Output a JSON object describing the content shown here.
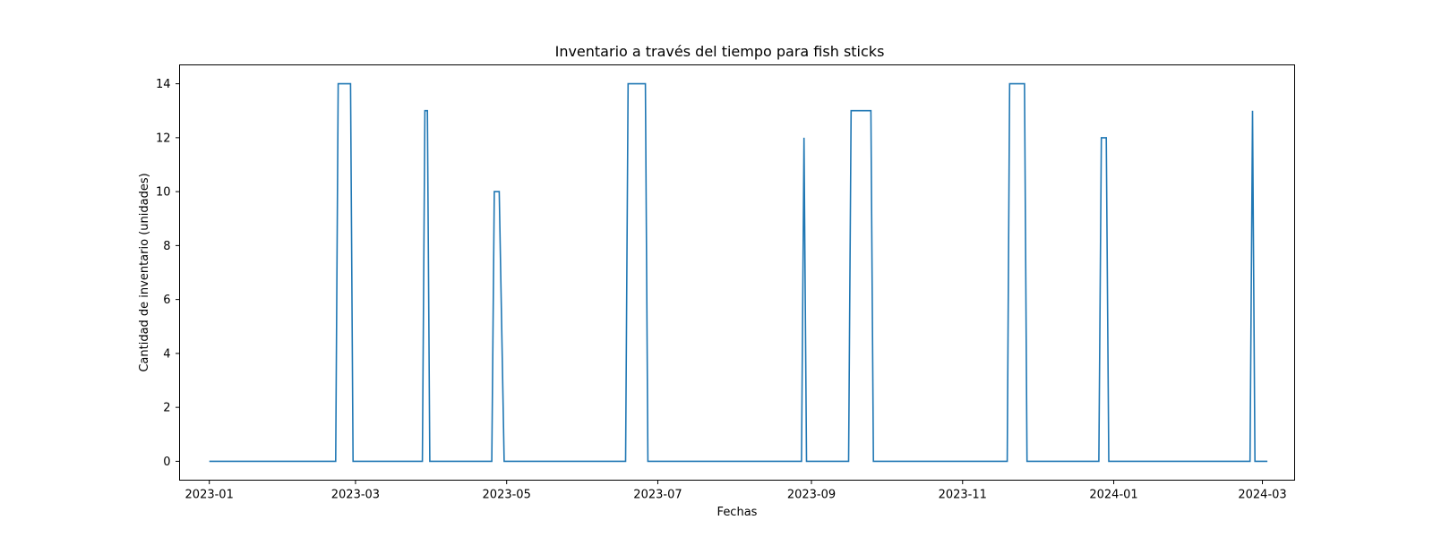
{
  "chart_data": {
    "type": "line",
    "title": "Inventario a través del tiempo para fish sticks",
    "xlabel": "Fechas",
    "ylabel": "Cantidad de inventario (unidades)",
    "x_axis_type": "date",
    "xlim": [
      "2022-12-20",
      "2024-03-14"
    ],
    "ylim": [
      -0.7,
      14.7
    ],
    "x_ticks": [
      "2023-01",
      "2023-03",
      "2023-05",
      "2023-07",
      "2023-09",
      "2023-11",
      "2024-01",
      "2024-03"
    ],
    "y_ticks": [
      0,
      2,
      4,
      6,
      8,
      10,
      12,
      14
    ],
    "grid": false,
    "legend": "none",
    "colors": {
      "series": "#1f77b4",
      "axes": "#000000",
      "background": "#ffffff"
    },
    "series": [
      {
        "points": [
          {
            "x": "2023-01-01",
            "y": 0
          },
          {
            "x": "2023-02-21",
            "y": 0
          },
          {
            "x": "2023-02-22",
            "y": 14
          },
          {
            "x": "2023-02-27",
            "y": 14
          },
          {
            "x": "2023-02-28",
            "y": 0
          },
          {
            "x": "2023-03-28",
            "y": 0
          },
          {
            "x": "2023-03-29",
            "y": 13
          },
          {
            "x": "2023-03-30",
            "y": 13
          },
          {
            "x": "2023-03-31",
            "y": 0
          },
          {
            "x": "2023-04-25",
            "y": 0
          },
          {
            "x": "2023-04-26",
            "y": 10
          },
          {
            "x": "2023-04-28",
            "y": 10
          },
          {
            "x": "2023-04-30",
            "y": 0
          },
          {
            "x": "2023-06-18",
            "y": 0
          },
          {
            "x": "2023-06-19",
            "y": 14
          },
          {
            "x": "2023-06-26",
            "y": 14
          },
          {
            "x": "2023-06-27",
            "y": 0
          },
          {
            "x": "2023-08-28",
            "y": 0
          },
          {
            "x": "2023-08-29",
            "y": 12
          },
          {
            "x": "2023-08-30",
            "y": 0
          },
          {
            "x": "2023-09-16",
            "y": 0
          },
          {
            "x": "2023-09-17",
            "y": 13
          },
          {
            "x": "2023-09-25",
            "y": 13
          },
          {
            "x": "2023-09-26",
            "y": 0
          },
          {
            "x": "2023-11-19",
            "y": 0
          },
          {
            "x": "2023-11-20",
            "y": 14
          },
          {
            "x": "2023-11-26",
            "y": 14
          },
          {
            "x": "2023-11-27",
            "y": 0
          },
          {
            "x": "2023-12-26",
            "y": 0
          },
          {
            "x": "2023-12-27",
            "y": 12
          },
          {
            "x": "2023-12-29",
            "y": 12
          },
          {
            "x": "2023-12-30",
            "y": 0
          },
          {
            "x": "2024-02-25",
            "y": 0
          },
          {
            "x": "2024-02-26",
            "y": 13
          },
          {
            "x": "2024-02-27",
            "y": 0
          },
          {
            "x": "2024-03-03",
            "y": 0
          }
        ]
      }
    ]
  }
}
